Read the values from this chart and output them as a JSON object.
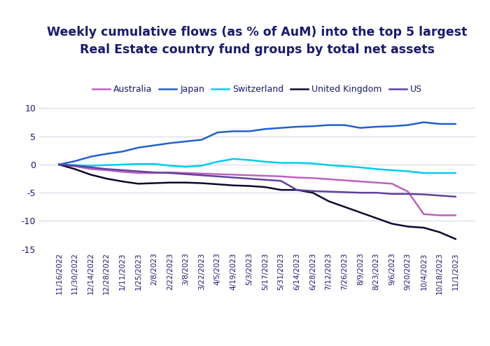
{
  "title_line1": "Weekly cumulative flows (as % of AuM) into the top 5 largest",
  "title_line2": "Real Estate country fund groups by total net assets",
  "x_labels": [
    "11/16/2022",
    "11/30/2022",
    "12/14/2022",
    "12/28/2022",
    "1/11/2023",
    "1/25/2023",
    "2/8/2023",
    "2/22/2023",
    "3/8/2023",
    "3/22/2023",
    "4/5/2023",
    "4/19/2023",
    "5/3/2023",
    "5/17/2023",
    "5/31/2023",
    "6/14/2023",
    "6/28/2023",
    "7/12/2023",
    "7/26/2023",
    "8/9/2023",
    "8/23/2023",
    "9/6/2023",
    "9/20/2023",
    "10/4/2023",
    "10/18/2023",
    "11/1/2023"
  ],
  "series": {
    "Australia": {
      "color": "#c060c0",
      "values": [
        0.0,
        -0.3,
        -0.8,
        -1.0,
        -1.3,
        -1.5,
        -1.5,
        -1.4,
        -1.5,
        -1.6,
        -1.7,
        -1.8,
        -1.9,
        -2.0,
        -2.1,
        -2.3,
        -2.4,
        -2.6,
        -2.8,
        -3.0,
        -3.2,
        -3.4,
        -4.8,
        -8.8,
        -9.0,
        -9.0
      ]
    },
    "Japan": {
      "color": "#2060d0",
      "values": [
        0.0,
        0.6,
        1.4,
        1.9,
        2.3,
        3.0,
        3.4,
        3.8,
        4.1,
        4.4,
        5.7,
        5.9,
        5.9,
        6.3,
        6.5,
        6.7,
        6.8,
        7.0,
        7.0,
        6.5,
        6.7,
        6.8,
        7.0,
        7.5,
        7.2,
        7.2
      ]
    },
    "Switzerland": {
      "color": "#00ccee",
      "values": [
        0.0,
        -0.1,
        -0.2,
        -0.1,
        0.0,
        0.1,
        0.1,
        -0.2,
        -0.4,
        -0.2,
        0.5,
        1.0,
        0.8,
        0.5,
        0.3,
        0.3,
        0.2,
        -0.1,
        -0.3,
        -0.5,
        -0.8,
        -1.0,
        -1.2,
        -1.5,
        -1.5,
        -1.5
      ]
    },
    "United Kingdom": {
      "color": "#0a0a30",
      "values": [
        0.0,
        -0.8,
        -1.8,
        -2.5,
        -3.0,
        -3.4,
        -3.3,
        -3.2,
        -3.2,
        -3.3,
        -3.5,
        -3.7,
        -3.8,
        -4.0,
        -4.5,
        -4.5,
        -5.0,
        -6.5,
        -7.5,
        -8.5,
        -9.5,
        -10.5,
        -11.0,
        -11.2,
        -12.0,
        -13.2
      ]
    },
    "US": {
      "color": "#6040a0",
      "values": [
        0.0,
        -0.2,
        -0.5,
        -0.8,
        -1.0,
        -1.2,
        -1.4,
        -1.5,
        -1.7,
        -1.9,
        -2.1,
        -2.3,
        -2.5,
        -2.7,
        -2.9,
        -4.5,
        -4.7,
        -4.8,
        -4.9,
        -5.0,
        -5.0,
        -5.2,
        -5.2,
        -5.3,
        -5.5,
        -5.7
      ]
    }
  },
  "ylim": [
    -15,
    12
  ],
  "yticks": [
    -15,
    -10,
    -5,
    0,
    5,
    10
  ],
  "background_color": "#ffffff",
  "plot_bg_color": "#ffffff",
  "grid_color": "#d8d8e8",
  "title_color": "#1a1a6e",
  "tick_color": "#1a1a6e",
  "title_fontsize": 12.5,
  "legend_fontsize": 9,
  "tick_fontsize": 7.5
}
